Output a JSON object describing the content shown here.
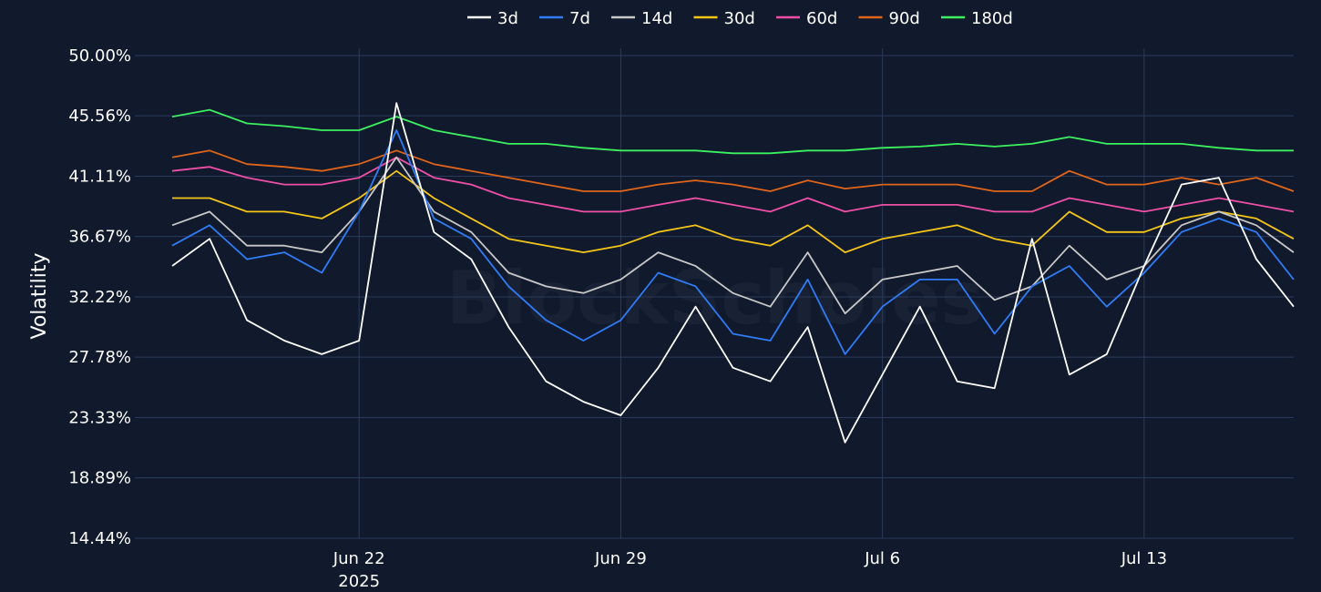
{
  "chart_data": {
    "type": "line",
    "title": "",
    "xlabel": "",
    "ylabel": "Volatility",
    "watermark": "BlockScholes",
    "legend_position": "top-center",
    "grid": true,
    "background": "#111a2c",
    "grid_color": "#2b3a5c",
    "x_range": [
      "2025-06-16",
      "2025-07-17"
    ],
    "ylim": [
      14.44,
      50.0
    ],
    "y_ticks": [
      14.44,
      18.89,
      23.33,
      27.78,
      32.22,
      36.67,
      41.11,
      45.56,
      50.0
    ],
    "y_tick_labels": [
      "14.44%",
      "18.89%",
      "23.33%",
      "27.78%",
      "32.22%",
      "36.67%",
      "41.11%",
      "45.56%",
      "50.00%"
    ],
    "x_ticks": [
      {
        "date": "2025-06-22",
        "label": "Jun 22",
        "sublabel": "2025"
      },
      {
        "date": "2025-06-29",
        "label": "Jun 29",
        "sublabel": ""
      },
      {
        "date": "2025-07-06",
        "label": "Jul 6",
        "sublabel": ""
      },
      {
        "date": "2025-07-13",
        "label": "Jul 13",
        "sublabel": ""
      }
    ],
    "series": [
      {
        "name": "3d",
        "color": "#ffffff",
        "points": [
          [
            "2025-06-17",
            34.5
          ],
          [
            "2025-06-18",
            36.5
          ],
          [
            "2025-06-19",
            30.5
          ],
          [
            "2025-06-20",
            29.0
          ],
          [
            "2025-06-21",
            28.0
          ],
          [
            "2025-06-22",
            29.0
          ],
          [
            "2025-06-23",
            46.5
          ],
          [
            "2025-06-24",
            37.0
          ],
          [
            "2025-06-25",
            35.0
          ],
          [
            "2025-06-26",
            30.0
          ],
          [
            "2025-06-27",
            26.0
          ],
          [
            "2025-06-28",
            24.5
          ],
          [
            "2025-06-29",
            23.5
          ],
          [
            "2025-06-30",
            27.0
          ],
          [
            "2025-07-01",
            31.5
          ],
          [
            "2025-07-02",
            27.0
          ],
          [
            "2025-07-03",
            26.0
          ],
          [
            "2025-07-04",
            30.0
          ],
          [
            "2025-07-05",
            21.5
          ],
          [
            "2025-07-06",
            26.5
          ],
          [
            "2025-07-07",
            31.5
          ],
          [
            "2025-07-08",
            26.0
          ],
          [
            "2025-07-09",
            25.5
          ],
          [
            "2025-07-10",
            36.5
          ],
          [
            "2025-07-11",
            26.5
          ],
          [
            "2025-07-12",
            28.0
          ],
          [
            "2025-07-13",
            34.5
          ],
          [
            "2025-07-14",
            40.5
          ],
          [
            "2025-07-15",
            41.0
          ],
          [
            "2025-07-16",
            35.0
          ],
          [
            "2025-07-17",
            31.5
          ]
        ]
      },
      {
        "name": "7d",
        "color": "#2f7cf6",
        "points": [
          [
            "2025-06-17",
            36.0
          ],
          [
            "2025-06-18",
            37.5
          ],
          [
            "2025-06-19",
            35.0
          ],
          [
            "2025-06-20",
            35.5
          ],
          [
            "2025-06-21",
            34.0
          ],
          [
            "2025-06-22",
            38.5
          ],
          [
            "2025-06-23",
            44.5
          ],
          [
            "2025-06-24",
            38.0
          ],
          [
            "2025-06-25",
            36.5
          ],
          [
            "2025-06-26",
            33.0
          ],
          [
            "2025-06-27",
            30.5
          ],
          [
            "2025-06-28",
            29.0
          ],
          [
            "2025-06-29",
            30.5
          ],
          [
            "2025-06-30",
            34.0
          ],
          [
            "2025-07-01",
            33.0
          ],
          [
            "2025-07-02",
            29.5
          ],
          [
            "2025-07-03",
            29.0
          ],
          [
            "2025-07-04",
            33.5
          ],
          [
            "2025-07-05",
            28.0
          ],
          [
            "2025-07-06",
            31.5
          ],
          [
            "2025-07-07",
            33.5
          ],
          [
            "2025-07-08",
            33.5
          ],
          [
            "2025-07-09",
            29.5
          ],
          [
            "2025-07-10",
            33.0
          ],
          [
            "2025-07-11",
            34.5
          ],
          [
            "2025-07-12",
            31.5
          ],
          [
            "2025-07-13",
            34.0
          ],
          [
            "2025-07-14",
            37.0
          ],
          [
            "2025-07-15",
            38.0
          ],
          [
            "2025-07-16",
            37.0
          ],
          [
            "2025-07-17",
            33.5
          ]
        ]
      },
      {
        "name": "14d",
        "color": "#c8c8c8",
        "points": [
          [
            "2025-06-17",
            37.5
          ],
          [
            "2025-06-18",
            38.5
          ],
          [
            "2025-06-19",
            36.0
          ],
          [
            "2025-06-20",
            36.0
          ],
          [
            "2025-06-21",
            35.5
          ],
          [
            "2025-06-22",
            38.5
          ],
          [
            "2025-06-23",
            42.5
          ],
          [
            "2025-06-24",
            38.5
          ],
          [
            "2025-06-25",
            37.0
          ],
          [
            "2025-06-26",
            34.0
          ],
          [
            "2025-06-27",
            33.0
          ],
          [
            "2025-06-28",
            32.5
          ],
          [
            "2025-06-29",
            33.5
          ],
          [
            "2025-06-30",
            35.5
          ],
          [
            "2025-07-01",
            34.5
          ],
          [
            "2025-07-02",
            32.5
          ],
          [
            "2025-07-03",
            31.5
          ],
          [
            "2025-07-04",
            35.5
          ],
          [
            "2025-07-05",
            31.0
          ],
          [
            "2025-07-06",
            33.5
          ],
          [
            "2025-07-07",
            34.0
          ],
          [
            "2025-07-08",
            34.5
          ],
          [
            "2025-07-09",
            32.0
          ],
          [
            "2025-07-10",
            33.0
          ],
          [
            "2025-07-11",
            36.0
          ],
          [
            "2025-07-12",
            33.5
          ],
          [
            "2025-07-13",
            34.5
          ],
          [
            "2025-07-14",
            37.5
          ],
          [
            "2025-07-15",
            38.5
          ],
          [
            "2025-07-16",
            37.5
          ],
          [
            "2025-07-17",
            35.5
          ]
        ]
      },
      {
        "name": "30d",
        "color": "#f5c518",
        "points": [
          [
            "2025-06-17",
            39.5
          ],
          [
            "2025-06-18",
            39.5
          ],
          [
            "2025-06-19",
            38.5
          ],
          [
            "2025-06-20",
            38.5
          ],
          [
            "2025-06-21",
            38.0
          ],
          [
            "2025-06-22",
            39.5
          ],
          [
            "2025-06-23",
            41.5
          ],
          [
            "2025-06-24",
            39.5
          ],
          [
            "2025-06-25",
            38.0
          ],
          [
            "2025-06-26",
            36.5
          ],
          [
            "2025-06-27",
            36.0
          ],
          [
            "2025-06-28",
            35.5
          ],
          [
            "2025-06-29",
            36.0
          ],
          [
            "2025-06-30",
            37.0
          ],
          [
            "2025-07-01",
            37.5
          ],
          [
            "2025-07-02",
            36.5
          ],
          [
            "2025-07-03",
            36.0
          ],
          [
            "2025-07-04",
            37.5
          ],
          [
            "2025-07-05",
            35.5
          ],
          [
            "2025-07-06",
            36.5
          ],
          [
            "2025-07-07",
            37.0
          ],
          [
            "2025-07-08",
            37.5
          ],
          [
            "2025-07-09",
            36.5
          ],
          [
            "2025-07-10",
            36.0
          ],
          [
            "2025-07-11",
            38.5
          ],
          [
            "2025-07-12",
            37.0
          ],
          [
            "2025-07-13",
            37.0
          ],
          [
            "2025-07-14",
            38.0
          ],
          [
            "2025-07-15",
            38.5
          ],
          [
            "2025-07-16",
            38.0
          ],
          [
            "2025-07-17",
            36.5
          ]
        ]
      },
      {
        "name": "60d",
        "color": "#ee4fa6",
        "points": [
          [
            "2025-06-17",
            41.5
          ],
          [
            "2025-06-18",
            41.8
          ],
          [
            "2025-06-19",
            41.0
          ],
          [
            "2025-06-20",
            40.5
          ],
          [
            "2025-06-21",
            40.5
          ],
          [
            "2025-06-22",
            41.0
          ],
          [
            "2025-06-23",
            42.5
          ],
          [
            "2025-06-24",
            41.0
          ],
          [
            "2025-06-25",
            40.5
          ],
          [
            "2025-06-26",
            39.5
          ],
          [
            "2025-06-27",
            39.0
          ],
          [
            "2025-06-28",
            38.5
          ],
          [
            "2025-06-29",
            38.5
          ],
          [
            "2025-06-30",
            39.0
          ],
          [
            "2025-07-01",
            39.5
          ],
          [
            "2025-07-02",
            39.0
          ],
          [
            "2025-07-03",
            38.5
          ],
          [
            "2025-07-04",
            39.5
          ],
          [
            "2025-07-05",
            38.5
          ],
          [
            "2025-07-06",
            39.0
          ],
          [
            "2025-07-07",
            39.0
          ],
          [
            "2025-07-08",
            39.0
          ],
          [
            "2025-07-09",
            38.5
          ],
          [
            "2025-07-10",
            38.5
          ],
          [
            "2025-07-11",
            39.5
          ],
          [
            "2025-07-12",
            39.0
          ],
          [
            "2025-07-13",
            38.5
          ],
          [
            "2025-07-14",
            39.0
          ],
          [
            "2025-07-15",
            39.5
          ],
          [
            "2025-07-16",
            39.0
          ],
          [
            "2025-07-17",
            38.5
          ]
        ]
      },
      {
        "name": "90d",
        "color": "#e0651a",
        "points": [
          [
            "2025-06-17",
            42.5
          ],
          [
            "2025-06-18",
            43.0
          ],
          [
            "2025-06-19",
            42.0
          ],
          [
            "2025-06-20",
            41.8
          ],
          [
            "2025-06-21",
            41.5
          ],
          [
            "2025-06-22",
            42.0
          ],
          [
            "2025-06-23",
            43.0
          ],
          [
            "2025-06-24",
            42.0
          ],
          [
            "2025-06-25",
            41.5
          ],
          [
            "2025-06-26",
            41.0
          ],
          [
            "2025-06-27",
            40.5
          ],
          [
            "2025-06-28",
            40.0
          ],
          [
            "2025-06-29",
            40.0
          ],
          [
            "2025-06-30",
            40.5
          ],
          [
            "2025-07-01",
            40.8
          ],
          [
            "2025-07-02",
            40.5
          ],
          [
            "2025-07-03",
            40.0
          ],
          [
            "2025-07-04",
            40.8
          ],
          [
            "2025-07-05",
            40.2
          ],
          [
            "2025-07-06",
            40.5
          ],
          [
            "2025-07-07",
            40.5
          ],
          [
            "2025-07-08",
            40.5
          ],
          [
            "2025-07-09",
            40.0
          ],
          [
            "2025-07-10",
            40.0
          ],
          [
            "2025-07-11",
            41.5
          ],
          [
            "2025-07-12",
            40.5
          ],
          [
            "2025-07-13",
            40.5
          ],
          [
            "2025-07-14",
            41.0
          ],
          [
            "2025-07-15",
            40.5
          ],
          [
            "2025-07-16",
            41.0
          ],
          [
            "2025-07-17",
            40.0
          ]
        ]
      },
      {
        "name": "180d",
        "color": "#3cf060",
        "points": [
          [
            "2025-06-17",
            45.5
          ],
          [
            "2025-06-18",
            46.0
          ],
          [
            "2025-06-19",
            45.0
          ],
          [
            "2025-06-20",
            44.8
          ],
          [
            "2025-06-21",
            44.5
          ],
          [
            "2025-06-22",
            44.5
          ],
          [
            "2025-06-23",
            45.5
          ],
          [
            "2025-06-24",
            44.5
          ],
          [
            "2025-06-25",
            44.0
          ],
          [
            "2025-06-26",
            43.5
          ],
          [
            "2025-06-27",
            43.5
          ],
          [
            "2025-06-28",
            43.2
          ],
          [
            "2025-06-29",
            43.0
          ],
          [
            "2025-06-30",
            43.0
          ],
          [
            "2025-07-01",
            43.0
          ],
          [
            "2025-07-02",
            42.8
          ],
          [
            "2025-07-03",
            42.8
          ],
          [
            "2025-07-04",
            43.0
          ],
          [
            "2025-07-05",
            43.0
          ],
          [
            "2025-07-06",
            43.2
          ],
          [
            "2025-07-07",
            43.3
          ],
          [
            "2025-07-08",
            43.5
          ],
          [
            "2025-07-09",
            43.3
          ],
          [
            "2025-07-10",
            43.5
          ],
          [
            "2025-07-11",
            44.0
          ],
          [
            "2025-07-12",
            43.5
          ],
          [
            "2025-07-13",
            43.5
          ],
          [
            "2025-07-14",
            43.5
          ],
          [
            "2025-07-15",
            43.2
          ],
          [
            "2025-07-16",
            43.0
          ],
          [
            "2025-07-17",
            43.0
          ]
        ]
      }
    ]
  }
}
